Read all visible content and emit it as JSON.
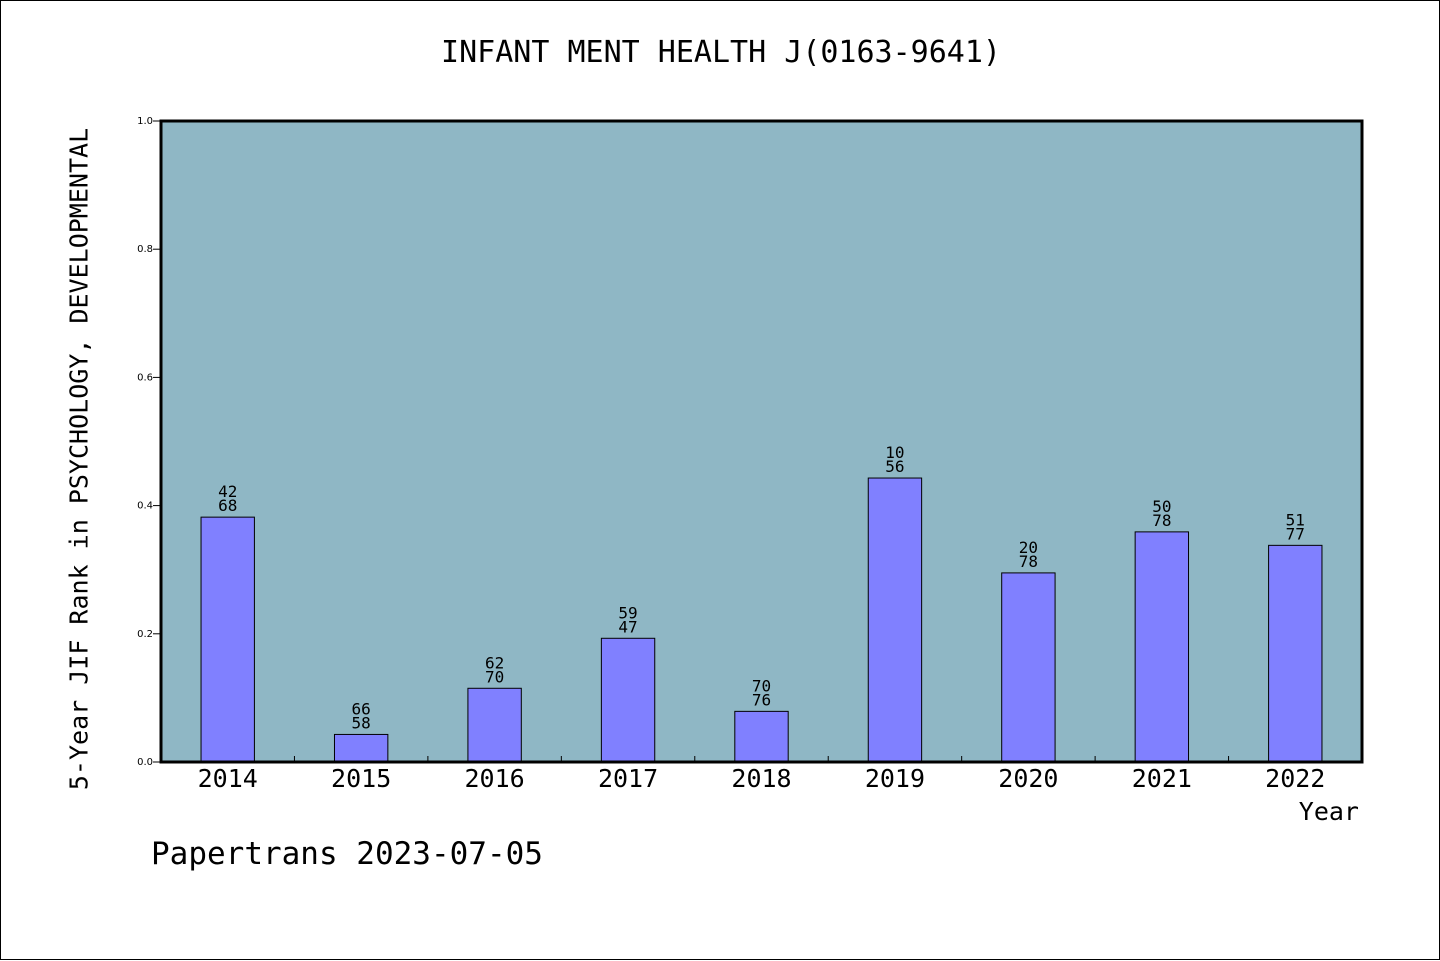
{
  "chart_data": {
    "type": "bar",
    "title": "INFANT MENT HEALTH J(0163-9641)",
    "xlabel": "Year",
    "ylabel": "5-Year JIF Rank in PSYCHOLOGY, DEVELOPMENTAL",
    "ylim": [
      0,
      1.0
    ],
    "yticks": [
      "0.0",
      "0.2",
      "0.4",
      "0.6",
      "0.8",
      "1.0"
    ],
    "categories": [
      "2014",
      "2015",
      "2016",
      "2017",
      "2018",
      "2019",
      "2020",
      "2021",
      "2022"
    ],
    "values": [
      0.382,
      0.043,
      0.115,
      0.193,
      0.079,
      0.443,
      0.295,
      0.359,
      0.338
    ],
    "labels_top": [
      "42",
      "66",
      "62",
      "59",
      "70",
      "10",
      "20",
      "50",
      "51"
    ],
    "labels_bottom": [
      "68",
      "58",
      "70",
      "47",
      "76",
      "56",
      "78",
      "78",
      "77"
    ],
    "grid": false,
    "colors": {
      "plot_background": "#8fb7c5",
      "bar_fill": "#8080ff",
      "bar_stroke": "#000000"
    }
  },
  "footer": {
    "watermark": "Papertrans 2023-07-05"
  }
}
